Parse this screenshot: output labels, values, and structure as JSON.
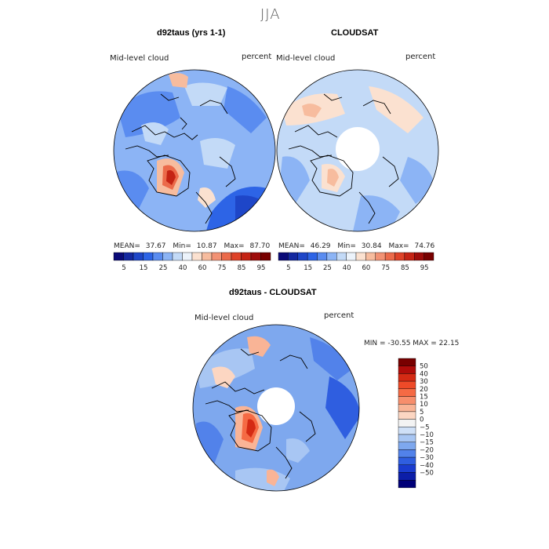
{
  "figure": {
    "season": "JJA",
    "top_left": {
      "title": "d92taus (yrs 1-1)",
      "variable": "Mid-level cloud",
      "units": "percent",
      "mean_label": "MEAN=",
      "mean": "37.67",
      "min_label": "Min=",
      "min": "10.87",
      "max_label": "Max=",
      "max": "87.70"
    },
    "top_right": {
      "title": "CLOUDSAT",
      "variable": "Mid-level cloud",
      "units": "percent",
      "mean_label": "MEAN=",
      "mean": "46.29",
      "min_label": "Min=",
      "min": "30.84",
      "max_label": "Max=",
      "max": "74.76"
    },
    "abs_colorbar": {
      "ticks": [
        "5",
        "15",
        "25",
        "40",
        "60",
        "75",
        "85",
        "95"
      ],
      "colors": [
        "#0a0a78",
        "#1428a0",
        "#1e46c8",
        "#2d64e6",
        "#5a8cf0",
        "#8cb4f5",
        "#c3daf7",
        "#ecf3fb",
        "#fbe1d0",
        "#f7bc9e",
        "#f29274",
        "#eb6a4a",
        "#de4228",
        "#c42314",
        "#9e0c0a",
        "#780000"
      ]
    },
    "bottom": {
      "title": "d92taus - CLOUDSAT",
      "variable": "Mid-level cloud",
      "units": "percent",
      "minmax_text": "MIN = -30.55 MAX =  22.15"
    },
    "diff_colorbar": {
      "labels": [
        "50",
        "40",
        "30",
        "20",
        "15",
        "10",
        "5",
        "0",
        "−5",
        "−10",
        "−15",
        "−20",
        "−30",
        "−40",
        "−50"
      ],
      "colors": [
        "#780000",
        "#b00c0a",
        "#d42a14",
        "#ee4a28",
        "#f56a44",
        "#f78e6c",
        "#f9b496",
        "#fcd6c2",
        "#f3f3f3",
        "#cfe0f7",
        "#a8c6f3",
        "#7ea8ee",
        "#5282ea",
        "#2f5ee0",
        "#1a3ccf",
        "#0c1ea8",
        "#000078"
      ]
    }
  }
}
